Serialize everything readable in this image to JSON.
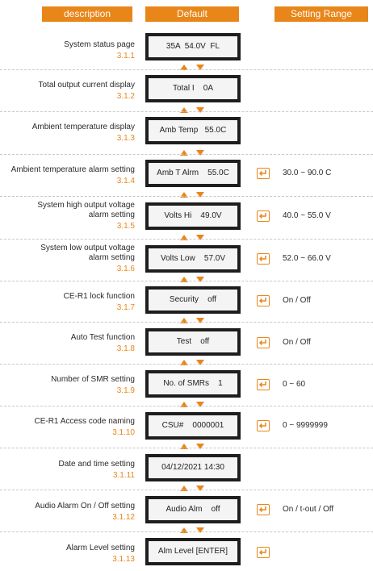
{
  "header": {
    "description": "description",
    "default": "Default",
    "setting_range": "Setting Range"
  },
  "icons": {
    "arrow_up": "arrow-up-icon",
    "arrow_down": "arrow-down-icon",
    "enter": "enter-key-icon"
  },
  "colors": {
    "accent": "#e8861a",
    "lcd_border": "#1e1e1e",
    "lcd_background": "#f4f4f4"
  },
  "rows": [
    {
      "desc": "System status page",
      "code": "3.1.1",
      "display": "35A  54.0V  FL"
    },
    {
      "desc": "Total output current display",
      "code": "3.1.2",
      "display": "Total I    0A"
    },
    {
      "desc": "Ambient temperature display",
      "code": "3.1.3",
      "display": "Amb Temp   55.0C"
    },
    {
      "desc": "Ambient temperature alarm setting",
      "code": "3.1.4",
      "display": "Amb T Alrm    55.0C",
      "range": "30.0 ~ 90.0  C"
    },
    {
      "desc": "System high output voltage",
      "desc2": "alarm setting",
      "code": "3.1.5",
      "display": "Volts Hi    49.0V",
      "range": "40.0 ~ 55.0 V"
    },
    {
      "desc": "System low output voltage",
      "desc2": "alarm setting",
      "code": "3.1.6",
      "display": "Volts Low    57.0V",
      "range": "52.0 ~ 66.0 V"
    },
    {
      "desc": "CE-R1 lock function",
      "code": "3.1.7",
      "display": "Security    off",
      "range": "On / Off"
    },
    {
      "desc": "Auto Test function",
      "code": "3.1.8",
      "display": "Test    off",
      "range": "On / Off"
    },
    {
      "desc": "Number of SMR setting",
      "code": "3.1.9",
      "display": "No. of SMRs    1",
      "range": "0 ~ 60"
    },
    {
      "desc": "CE-R1 Access code naming",
      "code": "3.1.10",
      "display": "CSU#    0000001",
      "range": "0 ~ 9999999"
    },
    {
      "desc": "Date and time setting",
      "code": "3.1.11",
      "display": "04/12/2021 14:30"
    },
    {
      "desc": "Audio Alarm On / Off setting",
      "code": "3.1.12",
      "display": "Audio Alm    off",
      "range": "On / t-out / Off"
    },
    {
      "desc": "Alarm Level setting",
      "code": "3.1.13",
      "display": "Alm Level [ENTER]",
      "enter_only": true
    }
  ]
}
